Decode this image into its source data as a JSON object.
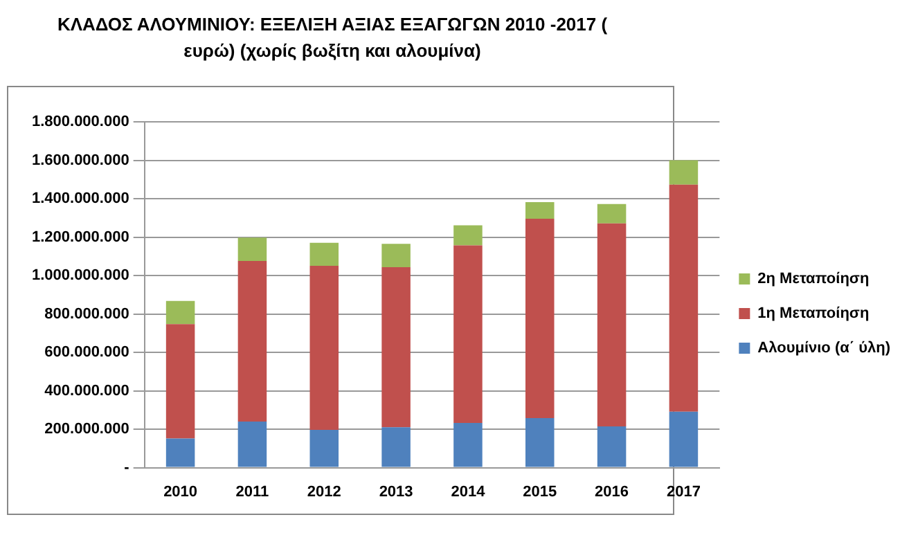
{
  "chart_data": {
    "type": "bar",
    "title": "ΚΛΑΔΟΣ  ΑΛΟΥΜΙΝΙΟΥ: ΕΞΕΛΙΞΗ  ΑΞΙΑΣ  ΕΞΑΓΩΓΩΝ 2010 -2017 ( ευρώ) (χωρίς βωξίτη και αλουμίνα)",
    "categories": [
      "2010",
      "2011",
      "2012",
      "2013",
      "2014",
      "2015",
      "2016",
      "2017"
    ],
    "stacked": true,
    "series": [
      {
        "name": "Αλουμίνιο (α΄ ύλη)",
        "color": "#4f81bd",
        "values": [
          152000000,
          240000000,
          197000000,
          210000000,
          233000000,
          258000000,
          215000000,
          291000000
        ]
      },
      {
        "name": "1η Μεταποίηση",
        "color": "#c0504d",
        "values": [
          595000000,
          836000000,
          854000000,
          833000000,
          924000000,
          1038000000,
          1056000000,
          1182000000
        ]
      },
      {
        "name": "2η Μεταποίηση",
        "color": "#9bbb59",
        "values": [
          121000000,
          121000000,
          119000000,
          122000000,
          104000000,
          86000000,
          101000000,
          127000000
        ]
      }
    ],
    "ylim": [
      0,
      1800000000
    ],
    "yticks": [
      {
        "value": 0,
        "label": "-"
      },
      {
        "value": 200000000,
        "label": "200.000.000"
      },
      {
        "value": 400000000,
        "label": "400.000.000"
      },
      {
        "value": 600000000,
        "label": "600.000.000"
      },
      {
        "value": 800000000,
        "label": "800.000.000"
      },
      {
        "value": 1000000000,
        "label": "1.000.000.000"
      },
      {
        "value": 1200000000,
        "label": "1.200.000.000"
      },
      {
        "value": 1400000000,
        "label": "1.400.000.000"
      },
      {
        "value": 1600000000,
        "label": "1.600.000.000"
      },
      {
        "value": 1800000000,
        "label": "1.800.000.000"
      }
    ],
    "grid": "y",
    "legend": "right"
  }
}
